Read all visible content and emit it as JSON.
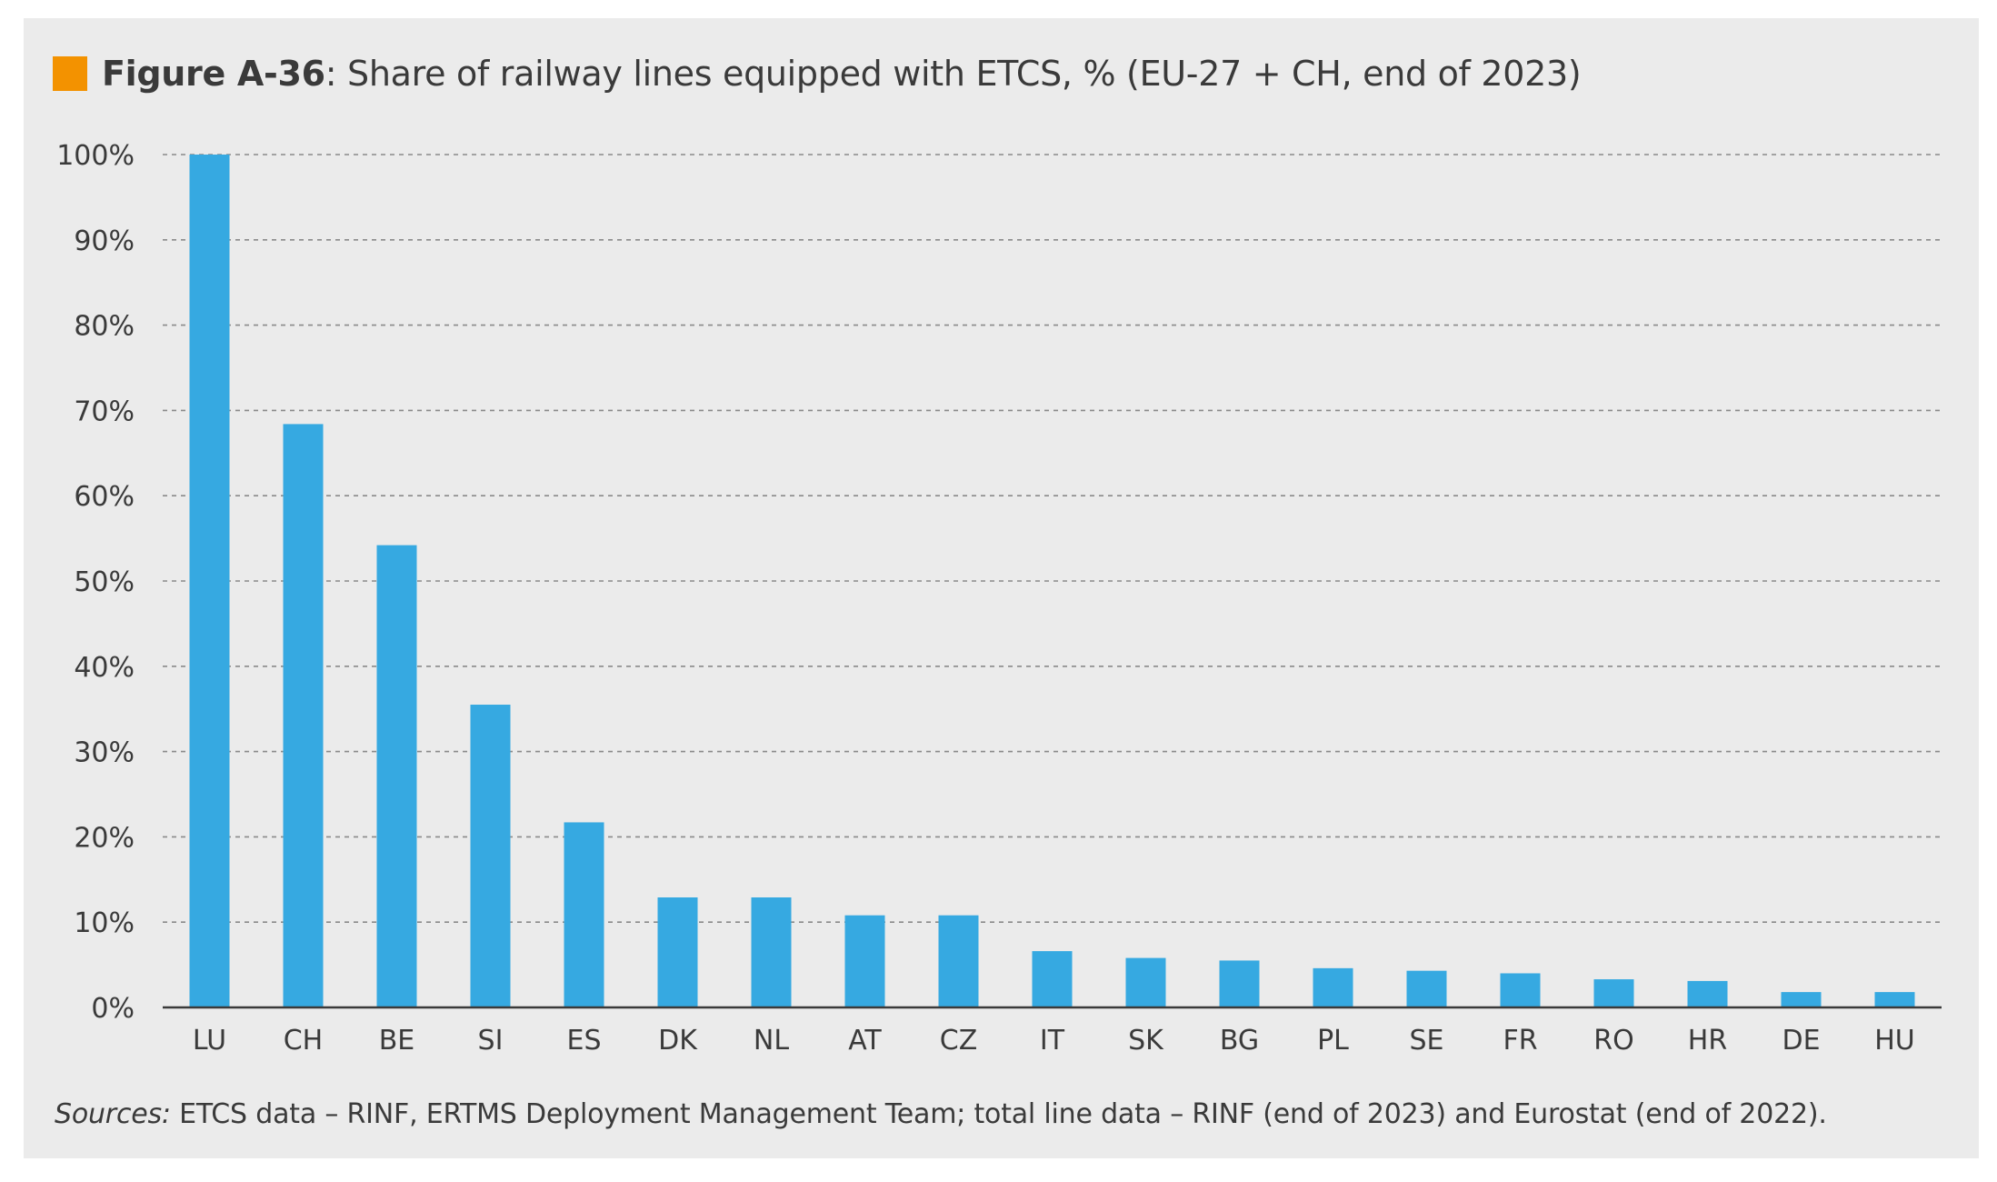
{
  "figure": {
    "label": "Figure A-36",
    "title_rest": ": Share of railway lines equipped with ETCS, % (EU-27 + CH, end of 2023)",
    "marker_color": "#f39200",
    "source_label": "Sources:",
    "source_text": " ETCS data – RINF, ERTMS Deployment Management Team; total line data – RINF (end of 2023) and Eurostat (end of 2022)."
  },
  "chart_data": {
    "type": "bar",
    "title": "Figure A-36: Share of railway lines equipped with ETCS, % (EU-27 + CH, end of 2023)",
    "xlabel": "",
    "ylabel": "",
    "categories": [
      "LU",
      "CH",
      "BE",
      "SI",
      "ES",
      "DK",
      "NL",
      "AT",
      "CZ",
      "IT",
      "SK",
      "BG",
      "PL",
      "SE",
      "FR",
      "RO",
      "HR",
      "DE",
      "HU"
    ],
    "values": [
      100,
      68.4,
      54.2,
      35.5,
      21.7,
      12.9,
      12.9,
      10.8,
      10.8,
      6.6,
      5.8,
      5.5,
      4.6,
      4.3,
      4.0,
      3.3,
      3.1,
      1.8,
      1.8
    ],
    "ylim": [
      0,
      100
    ],
    "yticks": [
      0,
      10,
      20,
      30,
      40,
      50,
      60,
      70,
      80,
      90,
      100
    ],
    "ytick_labels": [
      "0%",
      "10%",
      "20%",
      "30%",
      "40%",
      "50%",
      "60%",
      "70%",
      "80%",
      "90%",
      "100%"
    ],
    "grid": true,
    "bar_color": "#36a9e1",
    "grid_color": "#8a8a8a",
    "axis_color": "#3a3a3a",
    "text_color": "#3a3a3a"
  }
}
